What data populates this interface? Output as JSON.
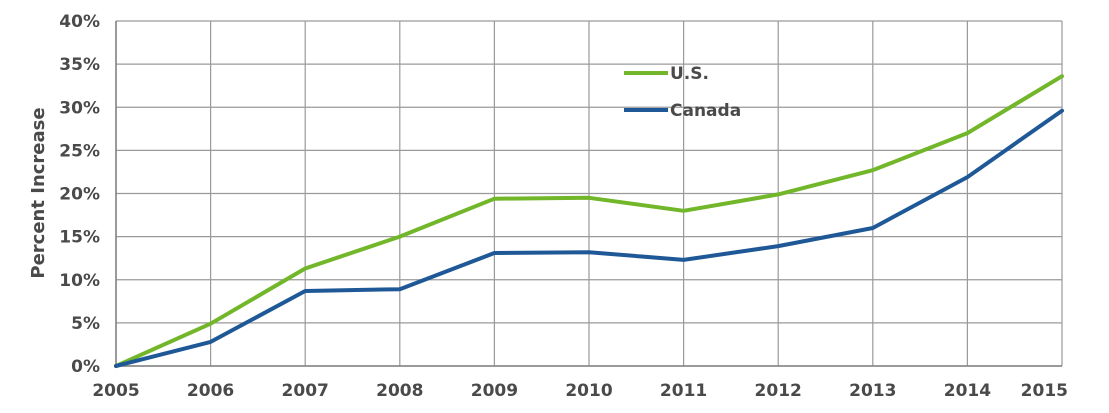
{
  "chart_data": {
    "type": "line",
    "title": "",
    "xlabel": "",
    "ylabel": "Percent Increase",
    "x": [
      2005,
      2006,
      2007,
      2008,
      2009,
      2010,
      2011,
      2012,
      2013,
      2014,
      2015
    ],
    "xlim": [
      2005,
      2015
    ],
    "ylim": [
      0,
      40
    ],
    "y_ticks": [
      0,
      5,
      10,
      15,
      20,
      25,
      30,
      35,
      40
    ],
    "y_tick_labels": [
      "0%",
      "5%",
      "10%",
      "15%",
      "20%",
      "25%",
      "30%",
      "35%",
      "40%"
    ],
    "x_tick_labels": [
      "2005",
      "2006",
      "2007",
      "2008",
      "2009",
      "2010",
      "2011",
      "2012",
      "2013",
      "2014",
      "2015"
    ],
    "grid": true,
    "legend_position": "top-center-right",
    "series": [
      {
        "name": "U.S.",
        "color": "#72b62a",
        "values": [
          0,
          4.9,
          11.3,
          15.0,
          19.4,
          19.5,
          18.0,
          19.9,
          22.7,
          27.0,
          33.6
        ]
      },
      {
        "name": "Canada",
        "color": "#1f5896",
        "values": [
          0,
          2.8,
          8.7,
          8.9,
          13.1,
          13.2,
          12.3,
          13.9,
          16.0,
          21.9,
          29.6
        ]
      }
    ]
  }
}
